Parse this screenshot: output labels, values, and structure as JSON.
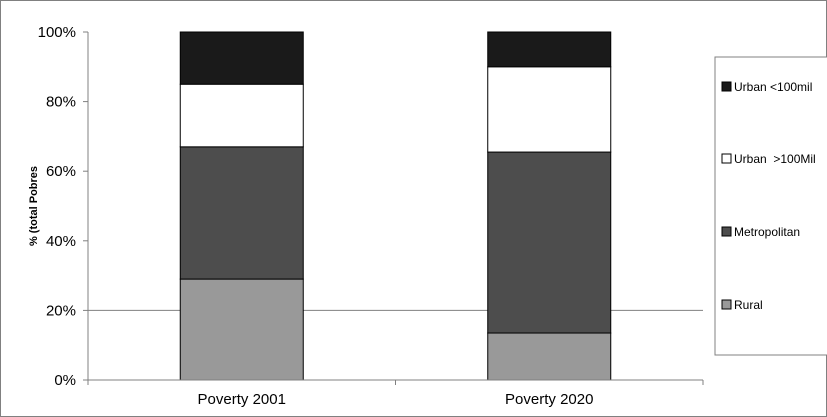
{
  "chart_data": {
    "type": "bar",
    "stacked": true,
    "percent_stacked": true,
    "categories": [
      "Poverty 2001",
      "Poverty 2020"
    ],
    "series": [
      {
        "name": "Rural",
        "values": [
          29,
          13.5
        ],
        "color": "#999999"
      },
      {
        "name": "Metropolitan",
        "values": [
          38,
          52
        ],
        "color": "#4d4d4d"
      },
      {
        "name": "Urban  >100Mil",
        "values": [
          18,
          24.5
        ],
        "color": "#ffffff"
      },
      {
        "name": "Urban <100mil",
        "values": [
          15,
          10
        ],
        "color": "#1a1a1a"
      }
    ],
    "ylabel": "% (total Pobres",
    "xlabel": "",
    "ylim": [
      0,
      100
    ],
    "yticks": [
      0,
      20,
      40,
      60,
      80,
      100
    ],
    "ytick_labels": [
      "0%",
      "20%",
      "40%",
      "60%",
      "80%",
      "100%"
    ],
    "grid": "horizontal at 20%",
    "legend_position": "right",
    "legend_order": [
      "Urban <100mil",
      "Urban  >100Mil",
      "Metropolitan",
      "Rural"
    ]
  }
}
